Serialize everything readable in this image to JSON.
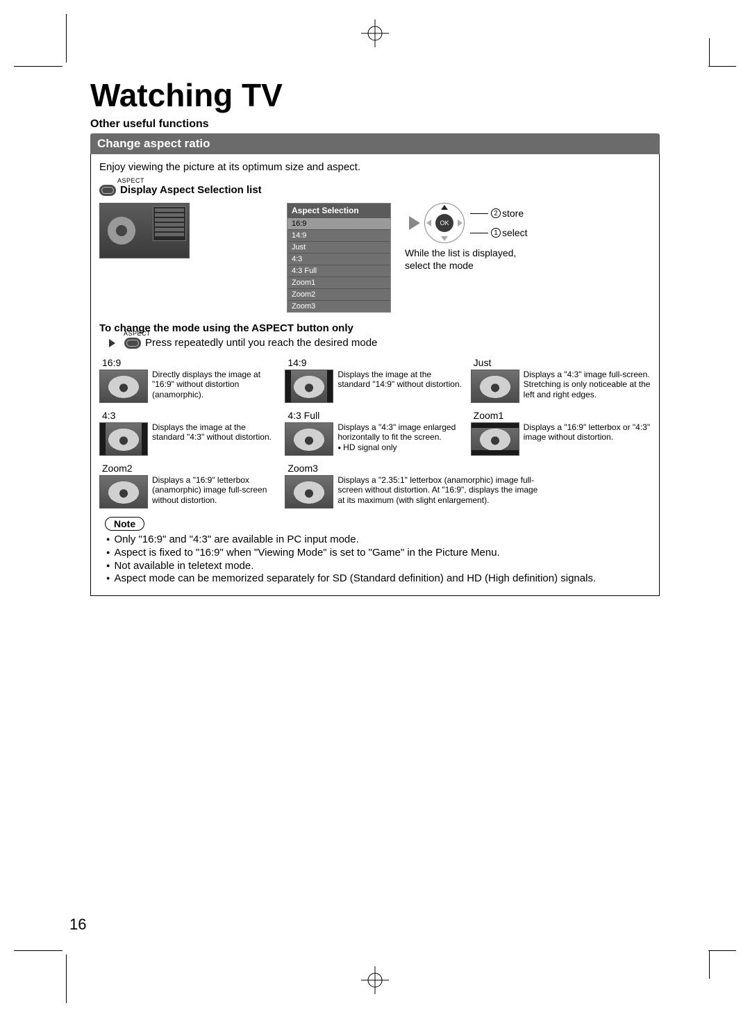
{
  "page": {
    "title": "Watching TV",
    "subhead": "Other useful functions",
    "section_title": "Change aspect ratio",
    "intro": "Enjoy viewing the picture at its optimum size and aspect.",
    "aspect_caption": "ASPECT",
    "display_list_label": "Display Aspect Selection list",
    "page_number": "16"
  },
  "osd": {
    "title": "Aspect Selection",
    "items": [
      "16:9",
      "14:9",
      "Just",
      "4:3",
      "4:3 Full",
      "Zoom1",
      "Zoom2",
      "Zoom3"
    ],
    "selected_index": 0
  },
  "callout": {
    "store": "store",
    "select": "select",
    "store_num": "2",
    "select_num": "1",
    "ok_label": "OK",
    "hint1": "While the list is displayed,",
    "hint2": "select the mode"
  },
  "sub2": {
    "heading": "To change the mode using the ASPECT button only",
    "press": "Press repeatedly until you reach the desired mode"
  },
  "modes": [
    {
      "key": "m169",
      "label": "16:9",
      "thumb": "",
      "desc": "Directly displays the image at \"16:9\" without distortion (anamorphic)."
    },
    {
      "key": "m149",
      "label": "14:9",
      "thumb": "pillar",
      "desc": "Displays the image at the standard \"14:9\" without distortion."
    },
    {
      "key": "just",
      "label": "Just",
      "thumb": "",
      "desc": "Displays a \"4:3\" image full-screen. Stretching is only noticeable at the left and right edges."
    },
    {
      "key": "m43",
      "label": "4:3",
      "thumb": "pillar",
      "desc": "Displays the image at the standard \"4:3\" without distortion."
    },
    {
      "key": "m43f",
      "label": "4:3 Full",
      "thumb": "",
      "desc": "Displays a \"4:3\" image enlarged horizontally to fit the screen.",
      "sub": "HD signal only"
    },
    {
      "key": "z1",
      "label": "Zoom1",
      "thumb": "letter",
      "desc": "Displays a \"16:9\" letterbox or \"4:3\" image without distortion."
    },
    {
      "key": "z2",
      "label": "Zoom2",
      "thumb": "",
      "desc": "Displays a \"16:9\" letterbox (anamorphic) image full-screen without distortion."
    },
    {
      "key": "z3",
      "label": "Zoom3",
      "thumb": "",
      "desc": "Displays a \"2.35:1\" letterbox (anamorphic) image full-screen without distortion. At \"16:9\", displays the image at its maximum (with slight enlargement).",
      "wide": true
    }
  ],
  "note": {
    "label": "Note",
    "items": [
      "Only \"16:9\" and \"4:3\" are available in PC input mode.",
      "Aspect is fixed to \"16:9\" when \"Viewing Mode\" is set to \"Game\" in the Picture Menu.",
      "Not available in teletext mode.",
      "Aspect mode can be memorized separately for SD (Standard definition) and HD (High definition) signals."
    ]
  },
  "colors": {
    "section_bar": "#6b6b6b",
    "osd_title_bg": "#5b5b5b",
    "osd_item_bg": "#707070",
    "osd_sel_bg": "#9a9a9a"
  }
}
